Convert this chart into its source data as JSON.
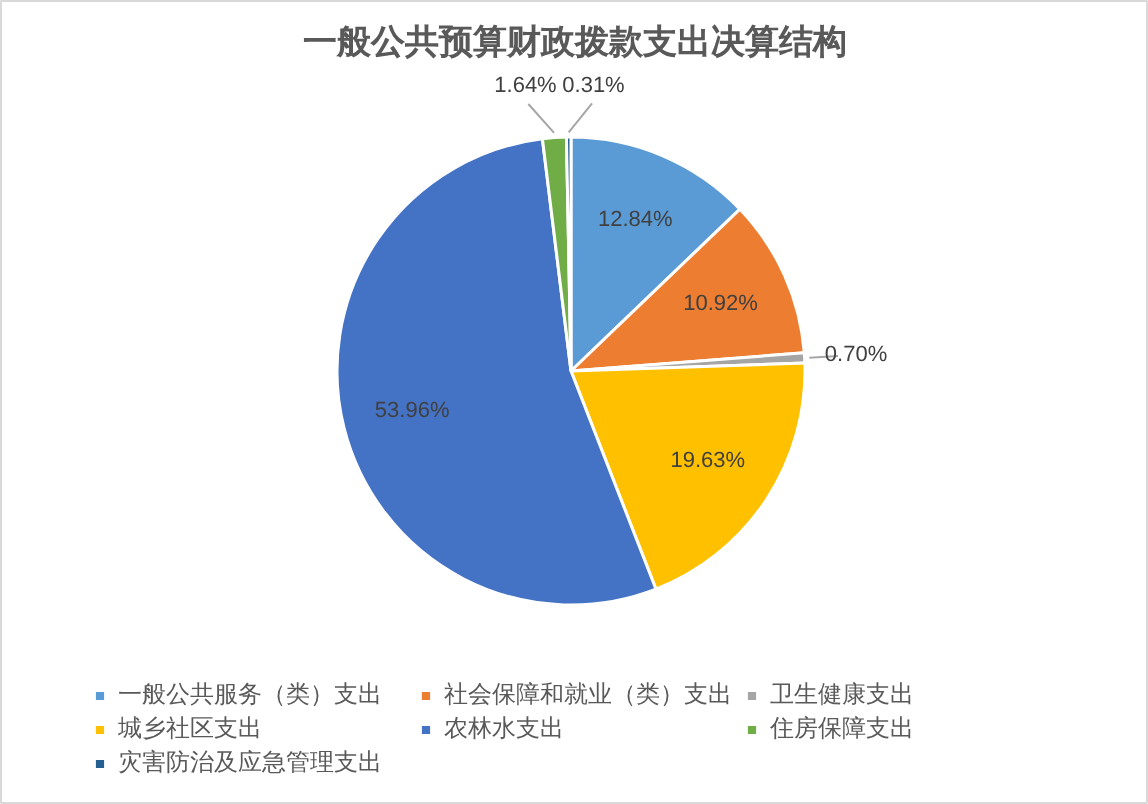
{
  "chart_data": {
    "type": "pie",
    "title": "一般公共预算财政拨款支出决算结构",
    "categories": [
      "一般公共服务（类）支出",
      "社会保障和就业（类）支出",
      "卫生健康支出",
      "城乡社区支出",
      "农林水支出",
      "住房保障支出",
      "灾害防治及应急管理支出"
    ],
    "values": [
      12.84,
      10.92,
      0.7,
      19.63,
      53.96,
      1.64,
      0.31
    ],
    "colors": [
      "#5b9bd5",
      "#ed7d31",
      "#a5a5a5",
      "#ffc000",
      "#4472c4",
      "#70ad47",
      "#255e91"
    ],
    "value_labels": [
      "12.84%",
      "10.92%",
      "0.70%",
      "19.63%",
      "53.96%",
      "1.64%",
      "0.31%"
    ],
    "legend": "bottom"
  }
}
